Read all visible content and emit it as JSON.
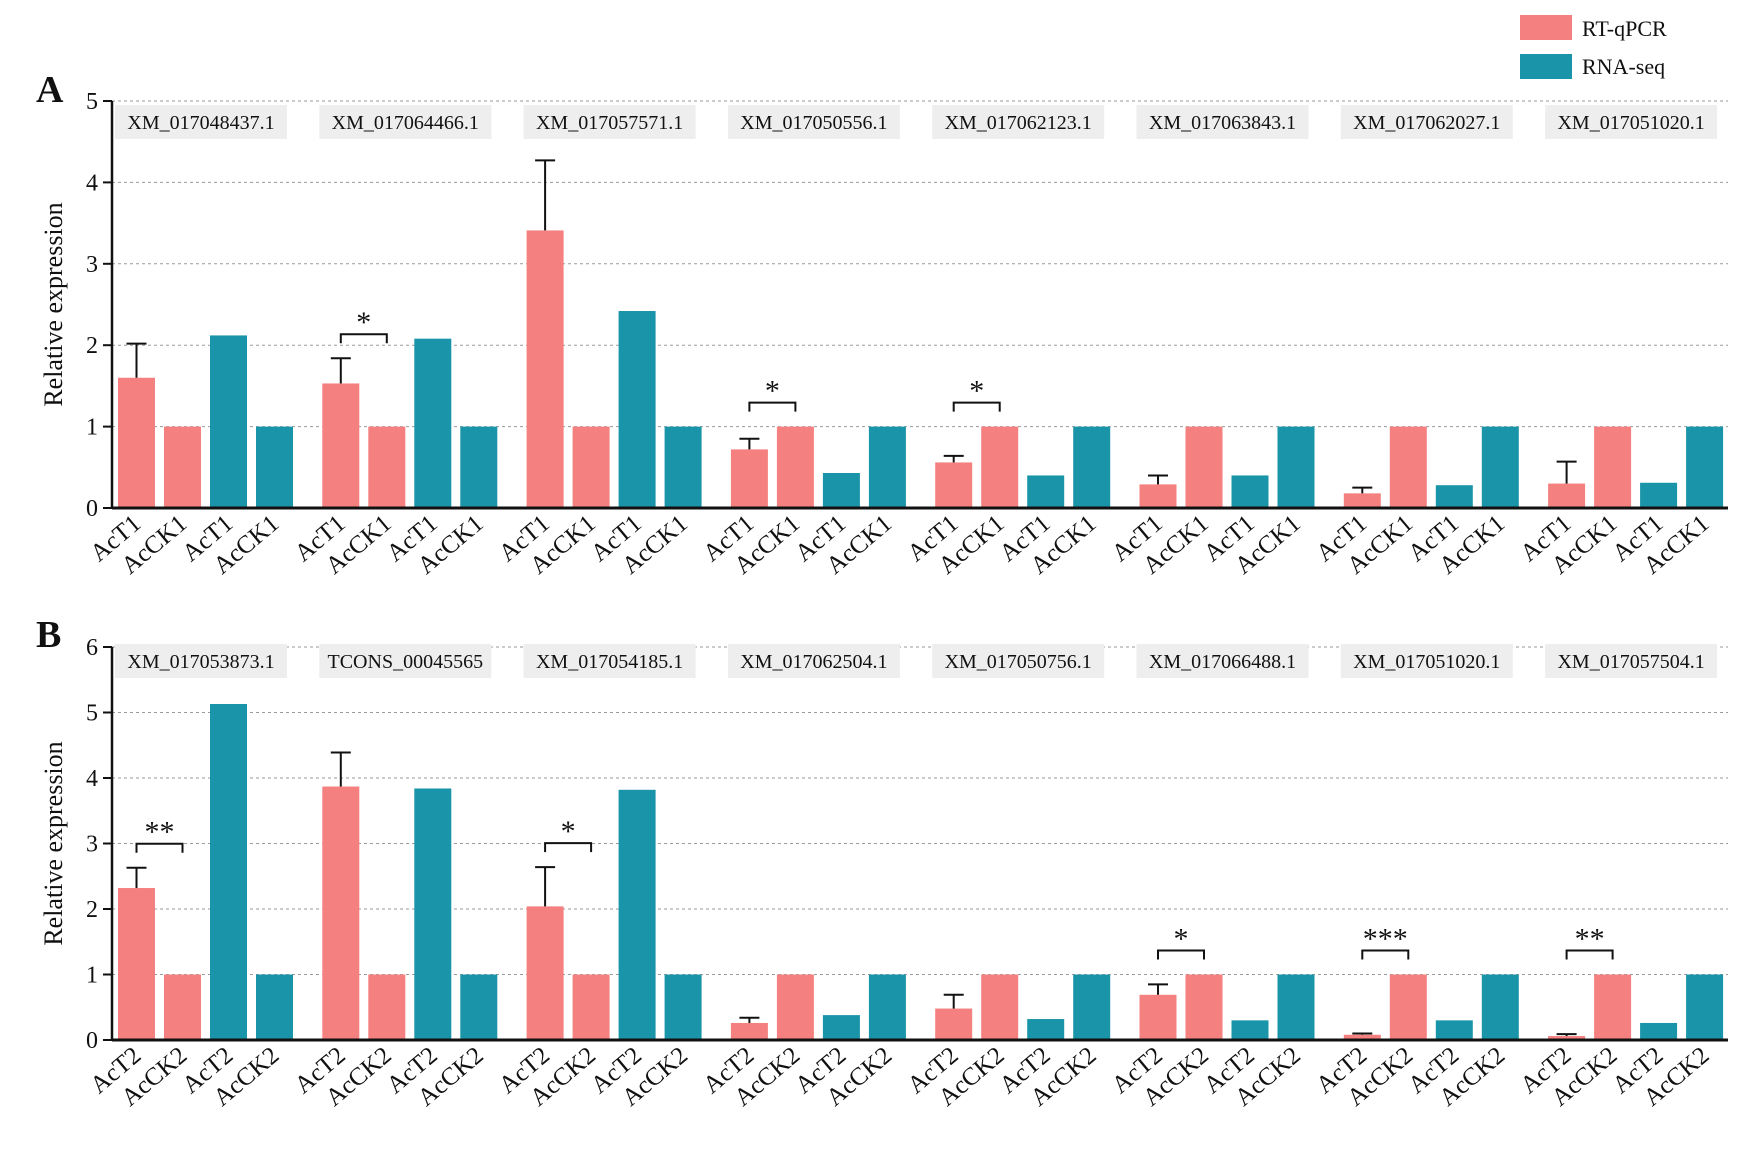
{
  "legend": [
    {
      "label": "RT-qPCR",
      "color": "#f58080"
    },
    {
      "label": "RNA-seq",
      "color": "#1a94a8"
    }
  ],
  "chart_data": [
    {
      "type": "bar",
      "panel_label": "A",
      "ylabel": "Relative expression",
      "ylim": [
        0,
        5
      ],
      "yticks": [
        0,
        1,
        2,
        3,
        4,
        5
      ],
      "grid": "dashed-horizontal",
      "series": [
        {
          "name": "RT-qPCR"
        },
        {
          "name": "RNA-seq"
        }
      ],
      "categories": [
        "AcT1",
        "AcCK1",
        "AcT1",
        "AcCK1"
      ],
      "groups": [
        {
          "gene": "XM_017048437.1",
          "qpcr": [
            1.6,
            1.0
          ],
          "qpcr_err": [
            0.42,
            0
          ],
          "rnaseq": [
            2.12,
            1.0
          ],
          "sig": ""
        },
        {
          "gene": "XM_017064466.1",
          "qpcr": [
            1.53,
            1.0
          ],
          "qpcr_err": [
            0.31,
            0
          ],
          "rnaseq": [
            2.08,
            1.0
          ],
          "sig": "*"
        },
        {
          "gene": "XM_017057571.1",
          "qpcr": [
            3.41,
            1.0
          ],
          "qpcr_err": [
            0.86,
            0
          ],
          "rnaseq": [
            2.42,
            1.0
          ],
          "sig": ""
        },
        {
          "gene": "XM_017050556.1",
          "qpcr": [
            0.72,
            1.0
          ],
          "qpcr_err": [
            0.13,
            0
          ],
          "rnaseq": [
            0.43,
            1.0
          ],
          "sig": "*"
        },
        {
          "gene": "XM_017062123.1",
          "qpcr": [
            0.56,
            1.0
          ],
          "qpcr_err": [
            0.08,
            0
          ],
          "rnaseq": [
            0.4,
            1.0
          ],
          "sig": "*"
        },
        {
          "gene": "XM_017063843.1",
          "qpcr": [
            0.29,
            1.0
          ],
          "qpcr_err": [
            0.11,
            0
          ],
          "rnaseq": [
            0.4,
            1.0
          ],
          "sig": ""
        },
        {
          "gene": "XM_017062027.1",
          "qpcr": [
            0.18,
            1.0
          ],
          "qpcr_err": [
            0.07,
            0
          ],
          "rnaseq": [
            0.28,
            1.0
          ],
          "sig": ""
        },
        {
          "gene": "XM_017051020.1",
          "qpcr": [
            0.3,
            1.0
          ],
          "qpcr_err": [
            0.27,
            0
          ],
          "rnaseq": [
            0.31,
            1.0
          ],
          "sig": ""
        }
      ]
    },
    {
      "type": "bar",
      "panel_label": "B",
      "ylabel": "Relative expression",
      "ylim": [
        0,
        6
      ],
      "yticks": [
        0,
        1,
        2,
        3,
        4,
        5,
        6
      ],
      "grid": "dashed-horizontal",
      "series": [
        {
          "name": "RT-qPCR"
        },
        {
          "name": "RNA-seq"
        }
      ],
      "categories": [
        "AcT2",
        "AcCK2",
        "AcT2",
        "AcCK2"
      ],
      "groups": [
        {
          "gene": "XM_017053873.1",
          "qpcr": [
            2.32,
            1.0
          ],
          "qpcr_err": [
            0.31,
            0
          ],
          "rnaseq": [
            5.13,
            1.0
          ],
          "sig": "**"
        },
        {
          "gene": "TCONS_00045565",
          "qpcr": [
            3.87,
            1.0
          ],
          "qpcr_err": [
            0.52,
            0
          ],
          "rnaseq": [
            3.84,
            1.0
          ],
          "sig": ""
        },
        {
          "gene": "XM_017054185.1",
          "qpcr": [
            2.04,
            1.0
          ],
          "qpcr_err": [
            0.6,
            0
          ],
          "rnaseq": [
            3.82,
            1.0
          ],
          "sig": "*"
        },
        {
          "gene": "XM_017062504.1",
          "qpcr": [
            0.26,
            1.0
          ],
          "qpcr_err": [
            0.08,
            0
          ],
          "rnaseq": [
            0.38,
            1.0
          ],
          "sig": ""
        },
        {
          "gene": "XM_017050756.1",
          "qpcr": [
            0.48,
            1.0
          ],
          "qpcr_err": [
            0.21,
            0
          ],
          "rnaseq": [
            0.32,
            1.0
          ],
          "sig": ""
        },
        {
          "gene": "XM_017066488.1",
          "qpcr": [
            0.69,
            1.0
          ],
          "qpcr_err": [
            0.16,
            0
          ],
          "rnaseq": [
            0.3,
            1.0
          ],
          "sig": "*"
        },
        {
          "gene": "XM_017051020.1",
          "qpcr": [
            0.08,
            1.0
          ],
          "qpcr_err": [
            0.02,
            0
          ],
          "rnaseq": [
            0.3,
            1.0
          ],
          "sig": "***"
        },
        {
          "gene": "XM_017057504.1",
          "qpcr": [
            0.06,
            1.0
          ],
          "qpcr_err": [
            0.03,
            0
          ],
          "rnaseq": [
            0.26,
            1.0
          ],
          "sig": "**"
        }
      ]
    }
  ]
}
